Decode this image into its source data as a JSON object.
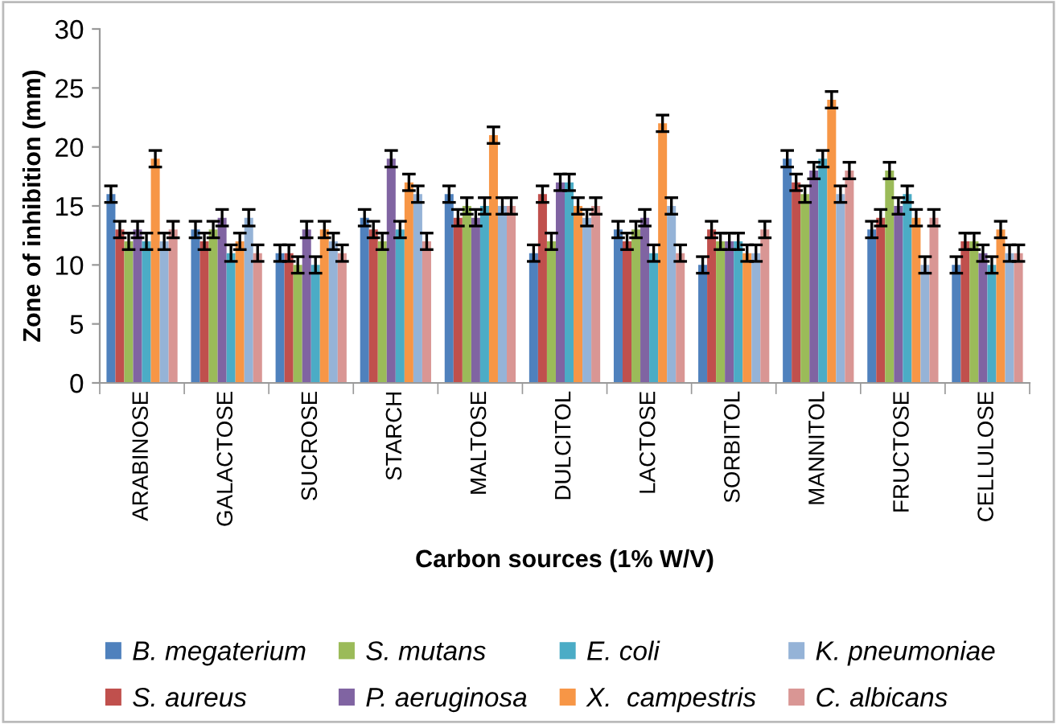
{
  "chart_data": {
    "type": "bar",
    "xlabel": "Carbon sources (1% W/V)",
    "ylabel": "Zone of inhibition (mm)",
    "categories": [
      "ARABINOSE",
      "GALACTOSE",
      "SUCROSE",
      "STARCH",
      "MALTOSE",
      "DULCITOL",
      "LACTOSE",
      "SORBITOL",
      "MANNITOL",
      "FRUCTOSE",
      "CELLULOSE"
    ],
    "series": [
      {
        "name": "B. megaterium",
        "color": "#4f81bd",
        "values": [
          16,
          13,
          11,
          14,
          16,
          11,
          13,
          10,
          19,
          13,
          10
        ],
        "errors": [
          0.7,
          0.7,
          0.7,
          0.7,
          0.7,
          0.7,
          0.7,
          0.7,
          0.7,
          0.7,
          0.7
        ]
      },
      {
        "name": "S. aureus",
        "color": "#c0504d",
        "values": [
          13,
          12,
          11,
          13,
          14,
          16,
          12,
          13,
          17,
          14,
          12
        ],
        "errors": [
          0.7,
          0.7,
          0.7,
          0.7,
          0.7,
          0.7,
          0.7,
          0.7,
          0.7,
          0.7,
          0.7
        ]
      },
      {
        "name": "S. mutans",
        "color": "#9bbb59",
        "values": [
          12,
          13,
          10,
          12,
          15,
          12,
          13,
          12,
          16,
          18,
          12
        ],
        "errors": [
          0.7,
          0.7,
          0.7,
          0.7,
          0.7,
          0.7,
          0.7,
          0.7,
          0.7,
          0.7,
          0.7
        ]
      },
      {
        "name": "P. aeruginosa",
        "color": "#8064a2",
        "values": [
          13,
          14,
          13,
          19,
          14,
          17,
          14,
          12,
          18,
          15,
          11
        ],
        "errors": [
          0.7,
          0.7,
          0.7,
          0.7,
          0.7,
          0.7,
          0.7,
          0.7,
          0.7,
          0.7,
          0.7
        ]
      },
      {
        "name": "E. coli",
        "color": "#4bacc6",
        "values": [
          12,
          11,
          10,
          13,
          15,
          17,
          11,
          12,
          19,
          16,
          10
        ],
        "errors": [
          0.7,
          0.7,
          0.7,
          0.7,
          0.7,
          0.7,
          0.7,
          0.7,
          0.7,
          0.7,
          0.7
        ]
      },
      {
        "name": "X.  campestris",
        "color": "#f79646",
        "values": [
          19,
          12,
          13,
          17,
          21,
          15,
          22,
          11,
          24,
          14,
          13
        ],
        "errors": [
          0.7,
          0.7,
          0.7,
          0.7,
          0.7,
          0.7,
          0.7,
          0.7,
          0.7,
          0.7,
          0.7
        ]
      },
      {
        "name": "K. pneumoniae",
        "color": "#95b3d7",
        "values": [
          12,
          14,
          12,
          16,
          15,
          14,
          15,
          11,
          16,
          10,
          11
        ],
        "errors": [
          0.7,
          0.7,
          0.7,
          0.7,
          0.7,
          0.7,
          0.7,
          0.7,
          0.7,
          0.7,
          0.7
        ]
      },
      {
        "name": "C. albicans",
        "color": "#d99694",
        "values": [
          13,
          11,
          11,
          12,
          15,
          15,
          11,
          13,
          18,
          14,
          11
        ],
        "errors": [
          0.7,
          0.7,
          0.7,
          0.7,
          0.7,
          0.7,
          0.7,
          0.7,
          0.7,
          0.7,
          0.7
        ]
      }
    ],
    "ylim": [
      0,
      30
    ],
    "yticks": [
      0,
      5,
      10,
      15,
      20,
      25,
      30
    ],
    "grid": false,
    "legend": "bottom"
  }
}
